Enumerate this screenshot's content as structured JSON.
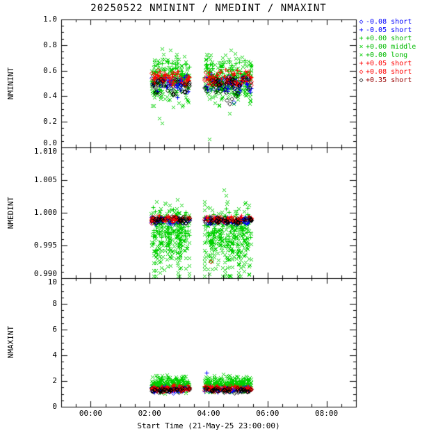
{
  "chart_data": {
    "type": "scatter",
    "title": "20250522 NMININT / NMEDINT / NMAXINT",
    "xlabel": "Start Time (21-May-25 23:00:00)",
    "x_domain_hours": [
      -1,
      9
    ],
    "xticks": {
      "hours": [
        0,
        2,
        4,
        6,
        8
      ],
      "labels": [
        "00:00",
        "02:00",
        "04:00",
        "06:00",
        "08:00"
      ]
    },
    "time_clusters": [
      [
        2.05,
        3.35
      ],
      [
        3.85,
        5.45
      ]
    ],
    "panels": [
      {
        "ylabel": "NMININT",
        "ylim": [
          0.0,
          1.0
        ],
        "yticks": [
          0.0,
          0.2,
          0.4,
          0.6,
          0.8,
          1.0
        ],
        "ytick_labels": [
          "0.0",
          "0.2",
          "0.4",
          "0.6",
          "0.8",
          "1.0"
        ],
        "minor_step": 0.05
      },
      {
        "ylabel": "NMEDINT",
        "ylim": [
          0.99,
          1.01
        ],
        "yticks": [
          0.99,
          0.995,
          1.0,
          1.005,
          1.01
        ],
        "ytick_labels": [
          "0.990",
          "0.995",
          "1.000",
          "1.005",
          "1.010"
        ],
        "minor_step": 0.001
      },
      {
        "ylabel": "NMAXINT",
        "ylim": [
          0,
          10
        ],
        "yticks": [
          0,
          2,
          4,
          6,
          8,
          10
        ],
        "ytick_labels": [
          "0",
          "2",
          "4",
          "6",
          "8",
          "10"
        ],
        "minor_step": 0.5
      }
    ],
    "series": [
      {
        "key": "bd",
        "label": "-0.08 short",
        "symbol": "diamond",
        "color": "#0000ff",
        "legend_text_color": "#0000ff",
        "count": 28,
        "dist": {
          "p1": {
            "base": 0.49,
            "spread": 0.07
          },
          "p2": {
            "base": 0.9988,
            "spread": 0.0006
          },
          "p3": {
            "base": 1.35,
            "spread": 0.25
          }
        }
      },
      {
        "key": "bp",
        "label": "-0.05 short",
        "symbol": "plus",
        "color": "#0000ff",
        "legend_text_color": "#0000ff",
        "count": 30,
        "dist": {
          "p1": {
            "base": 0.5,
            "spread": 0.08
          },
          "p2": {
            "base": 0.9989,
            "spread": 0.0006
          },
          "p3": {
            "base": 1.4,
            "spread": 0.28
          }
        }
      },
      {
        "key": "gp",
        "label": "+0.00 short",
        "symbol": "plus",
        "color": "#00d000",
        "legend_text_color": "#00bb00",
        "count": 70,
        "dist": {
          "p1": {
            "base": 0.55,
            "spread": 0.14
          },
          "p2": {
            "base": 0.9983,
            "spread": 0.0028,
            "tailp": 0.15,
            "tail": 0.004
          },
          "p3": {
            "base": 1.65,
            "spread": 0.55
          }
        }
      },
      {
        "key": "gxm",
        "label": "+0.00 middle",
        "symbol": "cross",
        "color": "#00d000",
        "legend_text_color": "#00bb00",
        "count": 130,
        "dist": {
          "p1": {
            "base": 0.54,
            "spread": 0.2,
            "tailp": 0.08,
            "tail": 0.14
          },
          "p2": {
            "base": 0.9972,
            "spread": 0.005,
            "tailp": 0.18,
            "tail": 0.004
          },
          "p3": {
            "base": 1.8,
            "spread": 0.75
          }
        }
      },
      {
        "key": "gxl",
        "label": "+0.00 long",
        "symbol": "cross",
        "color": "#00d000",
        "legend_text_color": "#00bb00",
        "count": 85,
        "dist": {
          "p1": {
            "base": 0.53,
            "spread": 0.24,
            "tailp": 0.08,
            "tail": 0.16
          },
          "p2": {
            "base": 0.9969,
            "spread": 0.0055,
            "tailp": 0.18,
            "tail": 0.0045
          },
          "p3": {
            "base": 1.75,
            "spread": 0.8
          }
        }
      },
      {
        "key": "rp",
        "label": "+0.05 short",
        "symbol": "plus",
        "color": "#ff0000",
        "legend_text_color": "#ff0000",
        "count": 45,
        "dist": {
          "p1": {
            "base": 0.55,
            "spread": 0.08
          },
          "p2": {
            "base": 0.9991,
            "spread": 0.0006
          },
          "p3": {
            "base": 1.45,
            "spread": 0.3
          }
        }
      },
      {
        "key": "rd",
        "label": "+0.08 short",
        "symbol": "diamond",
        "color": "#ff0000",
        "legend_text_color": "#ff0000",
        "count": 32,
        "dist": {
          "p1": {
            "base": 0.54,
            "spread": 0.08
          },
          "p2": {
            "base": 0.999,
            "spread": 0.0006
          },
          "p3": {
            "base": 1.4,
            "spread": 0.25
          }
        }
      },
      {
        "key": "kd",
        "label": "+0.35 short",
        "symbol": "diamond",
        "color": "#000000",
        "legend_text_color": "#990000",
        "count": 42,
        "dist": {
          "p1": {
            "base": 0.49,
            "spread": 0.09
          },
          "p2": {
            "base": 0.9989,
            "spread": 0.0006
          },
          "p3": {
            "base": 1.3,
            "spread": 0.22
          }
        }
      }
    ],
    "outliers": {
      "p1": [
        {
          "s": "gxm",
          "t": 2.33,
          "y": 0.23
        },
        {
          "s": "gxm",
          "t": 2.42,
          "y": 0.77
        },
        {
          "s": "gxm",
          "t": 2.47,
          "y": 0.73
        },
        {
          "s": "gxl",
          "t": 4.03,
          "y": 0.065
        },
        {
          "s": "gxl",
          "t": 3.93,
          "y": 0.73
        },
        {
          "s": "gxm",
          "t": 4.0,
          "y": 0.7
        },
        {
          "s": "gxm",
          "t": 4.22,
          "y": 0.35
        },
        {
          "s": "gxm",
          "t": 3.12,
          "y": 0.33
        },
        {
          "s": "kd",
          "t": 4.62,
          "y": 0.37
        },
        {
          "s": "kd",
          "t": 4.7,
          "y": 0.345
        },
        {
          "s": "kd",
          "t": 4.78,
          "y": 0.38
        },
        {
          "s": "bd",
          "t": 4.86,
          "y": 0.355
        },
        {
          "s": "kd",
          "t": 4.93,
          "y": 0.4
        },
        {
          "s": "bp",
          "t": 2.95,
          "y": 0.39
        }
      ],
      "p2": [
        {
          "s": "gxm",
          "t": 4.52,
          "y": 1.0035
        },
        {
          "s": "gxl",
          "t": 4.6,
          "y": 1.0027
        },
        {
          "s": "gxm",
          "t": 2.5,
          "y": 0.9913
        },
        {
          "s": "gxl",
          "t": 2.62,
          "y": 0.9918
        },
        {
          "s": "gxm",
          "t": 3.05,
          "y": 0.9916
        },
        {
          "s": "gxl",
          "t": 3.98,
          "y": 0.9914
        },
        {
          "s": "rd",
          "t": 4.07,
          "y": 0.9926
        },
        {
          "s": "gxm",
          "t": 4.3,
          "y": 0.9921
        },
        {
          "s": "gxm",
          "t": 2.25,
          "y": 0.993
        }
      ],
      "p3": [
        {
          "s": "bp",
          "t": 3.93,
          "y": 2.65
        },
        {
          "s": "gxm",
          "t": 4.5,
          "y": 2.55
        },
        {
          "s": "gxm",
          "t": 2.58,
          "y": 2.5
        }
      ]
    }
  }
}
